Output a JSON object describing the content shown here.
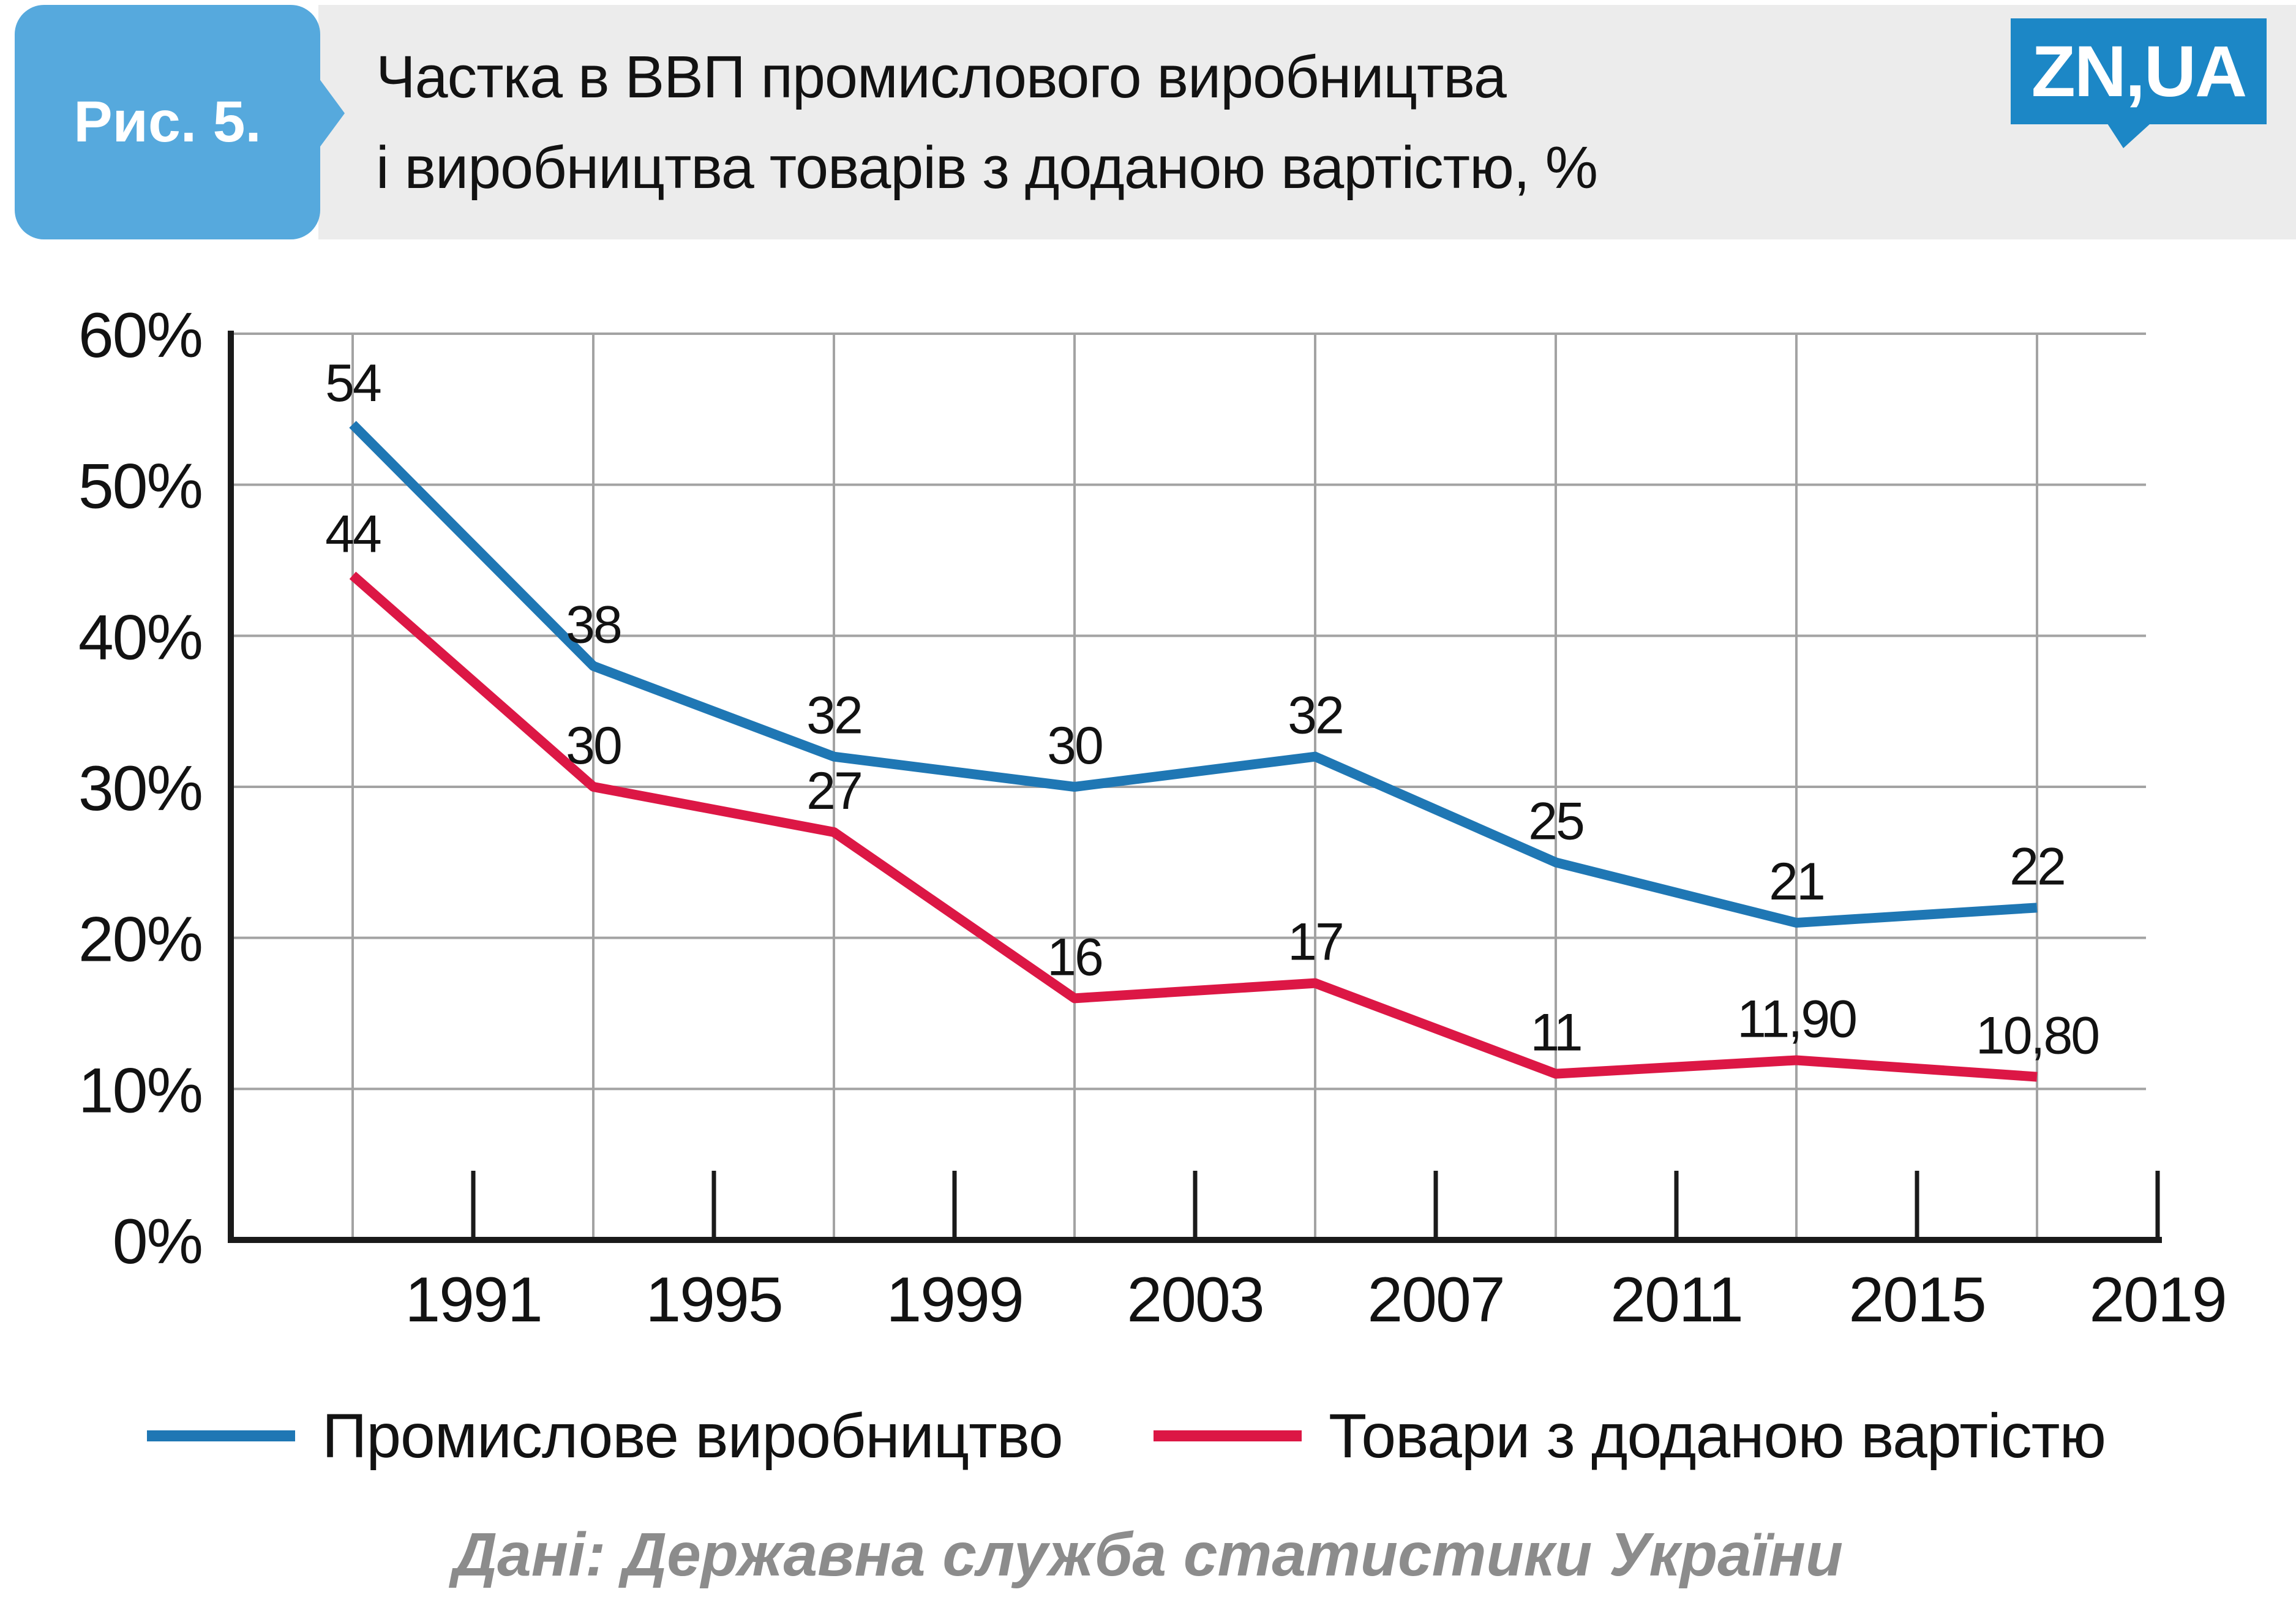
{
  "header": {
    "figure_label": "Рис. 5.",
    "title_line1": "Частка в ВВП промислового виробництва",
    "title_line2": "і виробництва товарів з доданою вартістю, %",
    "logo_text": "ZN,UA"
  },
  "footer": {
    "source": "Дані: Державна служба статистики України"
  },
  "colors": {
    "badge_blue": "#56a9dd",
    "logo_blue": "#1c87c6",
    "header_gray": "#ececec",
    "line_blue": "#1f77b4",
    "line_red": "#dc1745",
    "grid_gray": "#a3a3a3",
    "axis_black": "#1a1a1a",
    "source_gray": "#8c8c8c"
  },
  "chart_data": {
    "type": "line",
    "title": "Частка в ВВП промислового виробництва і виробництва товарів з доданою вартістю, %",
    "xlabel": "",
    "ylabel": "",
    "ylim": [
      0,
      60
    ],
    "grid": true,
    "legend_position": "bottom",
    "y_tick_labels": [
      "0%",
      "10%",
      "20%",
      "30%",
      "40%",
      "50%",
      "60%"
    ],
    "x_tick_labels": [
      "1991",
      "1995",
      "1999",
      "2003",
      "2007",
      "2011",
      "2015",
      "2019"
    ],
    "x_points_years_estimated": [
      1989,
      1993,
      1997,
      2001,
      2005,
      2009,
      2013,
      2017
    ],
    "series": [
      {
        "name": "Промислове виробництво",
        "color": "#1f77b4",
        "values": [
          54,
          38,
          32,
          30,
          32,
          25,
          21,
          22
        ],
        "point_labels": [
          "54",
          "38",
          "32",
          "30",
          "32",
          "25",
          "21",
          "22"
        ]
      },
      {
        "name": "Товари з доданою вартістю",
        "color": "#dc1745",
        "values": [
          44,
          30,
          27,
          16,
          17,
          11,
          11.9,
          10.8
        ],
        "point_labels": [
          "44",
          "30",
          "27",
          "16",
          "17",
          "11",
          "11,90",
          "10,80"
        ]
      }
    ]
  }
}
